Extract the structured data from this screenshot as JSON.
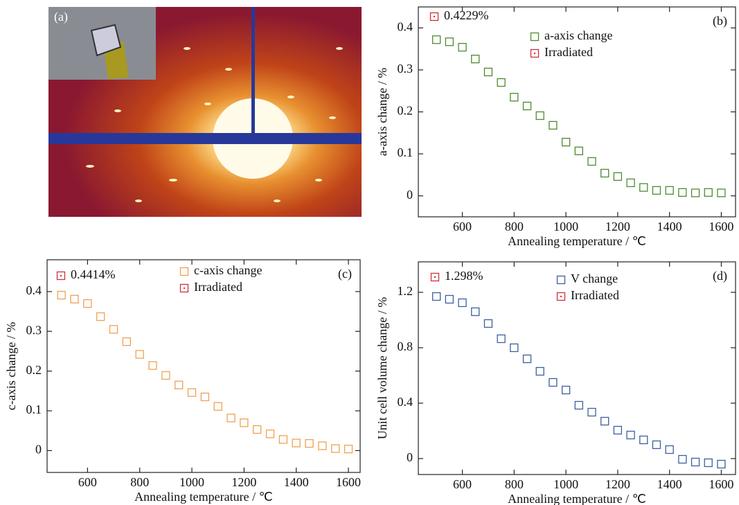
{
  "panel_a": {
    "label": "(a)"
  },
  "chart_data": [
    {
      "type": "scatter",
      "panel_label": "(b)",
      "xlabel": "Annealing temperature / ℃",
      "ylabel": "a-axis change / %",
      "x": [
        500,
        550,
        600,
        650,
        700,
        750,
        800,
        850,
        900,
        950,
        1000,
        1050,
        1100,
        1150,
        1200,
        1250,
        1300,
        1350,
        1400,
        1450,
        1500,
        1550,
        1600
      ],
      "series": [
        {
          "name": "a-axis change",
          "color": "#4e8a2e",
          "values": [
            0.372,
            0.367,
            0.354,
            0.326,
            0.295,
            0.27,
            0.235,
            0.214,
            0.191,
            0.168,
            0.128,
            0.107,
            0.082,
            0.054,
            0.046,
            0.031,
            0.02,
            0.013,
            0.013,
            0.008,
            0.007,
            0.008,
            0.007
          ]
        },
        {
          "name": "Irradiated",
          "color": "#d0303a",
          "values": [
            0.4229
          ],
          "value_labels": [
            "0.4229%"
          ]
        }
      ],
      "xlim": [
        430,
        1655
      ],
      "xticks": [
        600,
        800,
        1000,
        1200,
        1400,
        1600
      ],
      "ylim": [
        -0.05,
        0.45
      ],
      "yticks": [
        0,
        0.1,
        0.2,
        0.3,
        0.4
      ],
      "grid": false
    },
    {
      "type": "scatter",
      "panel_label": "(c)",
      "xlabel": "Annealing temperature / ℃",
      "ylabel": "c-axis change / %",
      "x": [
        500,
        550,
        600,
        650,
        700,
        750,
        800,
        850,
        900,
        950,
        1000,
        1050,
        1100,
        1150,
        1200,
        1250,
        1300,
        1350,
        1400,
        1450,
        1500,
        1550,
        1600
      ],
      "series": [
        {
          "name": "c-axis change",
          "color": "#f0a050",
          "values": [
            0.391,
            0.381,
            0.37,
            0.337,
            0.305,
            0.274,
            0.242,
            0.214,
            0.189,
            0.165,
            0.146,
            0.135,
            0.111,
            0.082,
            0.07,
            0.053,
            0.042,
            0.028,
            0.019,
            0.018,
            0.012,
            0.005,
            0.004
          ]
        },
        {
          "name": "Irradiated",
          "color": "#d0303a",
          "values": [
            0.4414
          ],
          "value_labels": [
            "0.4414%"
          ]
        }
      ],
      "xlim": [
        445,
        1645
      ],
      "xticks": [
        600,
        800,
        1000,
        1200,
        1400,
        1600
      ],
      "ylim": [
        -0.055,
        0.48
      ],
      "yticks": [
        0,
        0.1,
        0.2,
        0.3,
        0.4
      ],
      "grid": false
    },
    {
      "type": "scatter",
      "panel_label": "(d)",
      "xlabel": "Annealing temperature / ℃",
      "ylabel": "Unit cell volume change / %",
      "x": [
        500,
        550,
        600,
        650,
        700,
        750,
        800,
        850,
        900,
        950,
        1000,
        1050,
        1100,
        1150,
        1200,
        1250,
        1300,
        1350,
        1400,
        1450,
        1500,
        1550,
        1600
      ],
      "series": [
        {
          "name": "V change",
          "color": "#3b5fa0",
          "values": [
            1.17,
            1.15,
            1.125,
            1.06,
            0.975,
            0.865,
            0.8,
            0.72,
            0.63,
            0.55,
            0.495,
            0.385,
            0.335,
            0.27,
            0.205,
            0.17,
            0.135,
            0.1,
            0.065,
            -0.005,
            -0.025,
            -0.03,
            -0.04
          ]
        },
        {
          "name": "Irradiated",
          "color": "#d0303a",
          "values": [
            1.298
          ],
          "value_labels": [
            "1.298%"
          ]
        }
      ],
      "xlim": [
        430,
        1655
      ],
      "xticks": [
        600,
        800,
        1000,
        1200,
        1400,
        1600
      ],
      "ylim": [
        -0.115,
        1.42
      ],
      "yticks": [
        0,
        0.4,
        0.8,
        1.2
      ],
      "grid": false
    }
  ]
}
